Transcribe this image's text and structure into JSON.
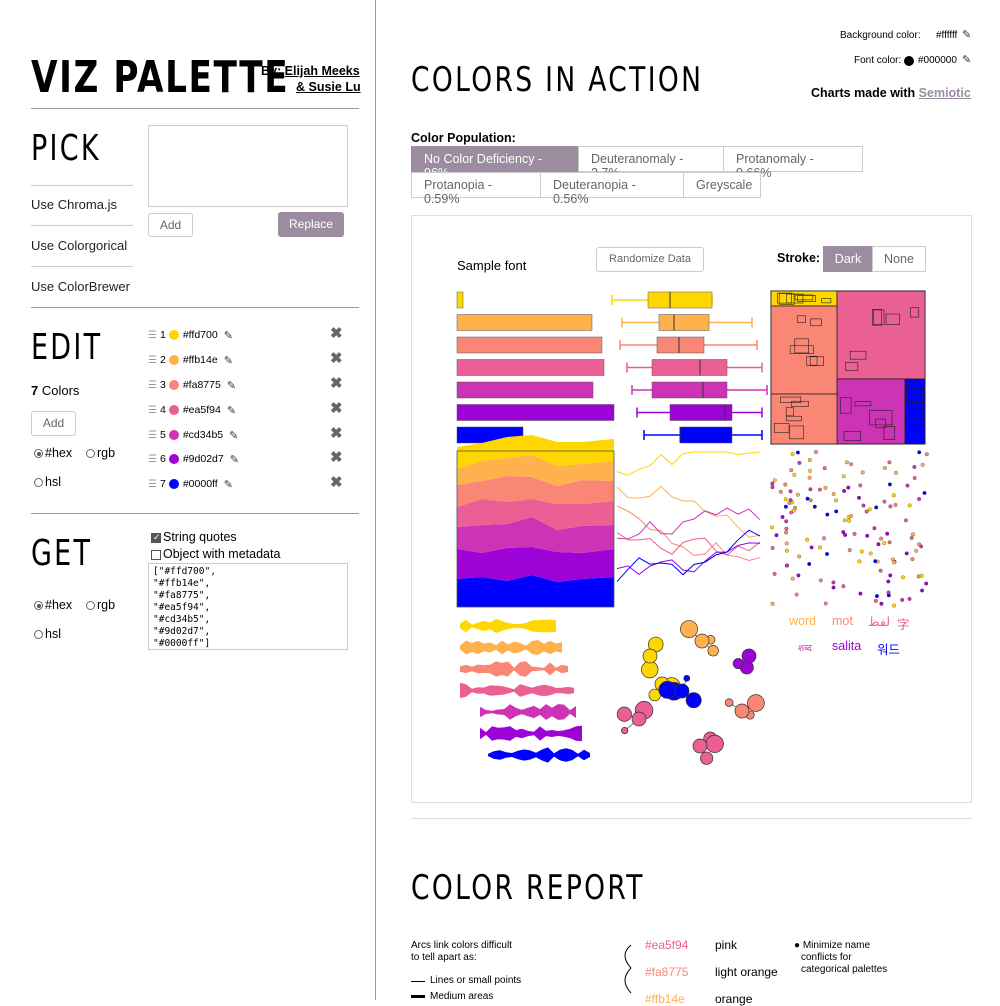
{
  "sidebar": {
    "title": "VIZ PALETTE",
    "by_label": "By:",
    "author1": "Elijah Meeks",
    "author2": "& Susie Lu",
    "pick": {
      "heading": "PICK",
      "textarea_value": "",
      "add_label": "Add",
      "replace_label": "Replace",
      "links": [
        "Use Chroma.js",
        "Use Colorgorical",
        "Use ColorBrewer"
      ]
    },
    "edit": {
      "heading": "EDIT",
      "count": "7",
      "count_suffix": "Colors",
      "add_label": "Add",
      "radio_hex": "#hex",
      "radio_rgb": "rgb",
      "radio_hsl": "hsl",
      "colors": [
        {
          "n": "1",
          "hex": "#ffd700"
        },
        {
          "n": "2",
          "hex": "#ffb14e"
        },
        {
          "n": "3",
          "hex": "#fa8775"
        },
        {
          "n": "4",
          "hex": "#ea5f94"
        },
        {
          "n": "5",
          "hex": "#cd34b5"
        },
        {
          "n": "6",
          "hex": "#9d02d7"
        },
        {
          "n": "7",
          "hex": "#0000ff"
        }
      ]
    },
    "get": {
      "heading": "GET",
      "string_quotes": "String quotes",
      "object_metadata": "Object with metadata",
      "radio_hex": "#hex",
      "radio_rgb": "rgb",
      "radio_hsl": "hsl",
      "output": "[\"#ffd700\",\n\"#ffb14e\",\n\"#fa8775\",\n\"#ea5f94\",\n\"#cd34b5\",\n\"#9d02d7\",\n\"#0000ff\"]"
    }
  },
  "main": {
    "bg_label": "Background color:",
    "bg_value": "#ffffff",
    "font_label": "Font color:",
    "font_value": "#000000",
    "heading": "COLORS IN ACTION",
    "charts_made_with": "Charts made with",
    "semiotic": "Semiotic",
    "population_label": "Color Population:",
    "population_tabs": [
      "No Color Deficiency - 96%",
      "Deuteranomaly - 2.7%",
      "Protanomaly - 0.66%",
      "Protanopia - 0.59%",
      "Deuteranopia - 0.56%",
      "Greyscale"
    ],
    "sample_font": "Sample font",
    "randomize": "Randomize Data",
    "stroke_label": "Stroke:",
    "stroke_dark": "Dark",
    "stroke_none": "None",
    "words": [
      "word",
      "mot",
      "لفظ",
      "字",
      "शब्द",
      "salita",
      "워드"
    ],
    "report_heading": "COLOR REPORT",
    "report_note_1": "Arcs link colors difficult",
    "report_note_2": "to tell apart as:",
    "legend_lines": "Lines or small points",
    "legend_areas": "Medium areas",
    "names": [
      {
        "hex": "#ea5f94",
        "name": "pink"
      },
      {
        "hex": "#fa8775",
        "name": "light orange"
      },
      {
        "hex": "#ffb14e",
        "name": "orange"
      }
    ],
    "tip_1": "Minimize name",
    "tip_2": "conflicts for",
    "tip_3": "categorical palettes"
  },
  "palette": [
    "#ffd700",
    "#ffb14e",
    "#fa8775",
    "#ea5f94",
    "#cd34b5",
    "#9d02d7",
    "#0000ff"
  ]
}
